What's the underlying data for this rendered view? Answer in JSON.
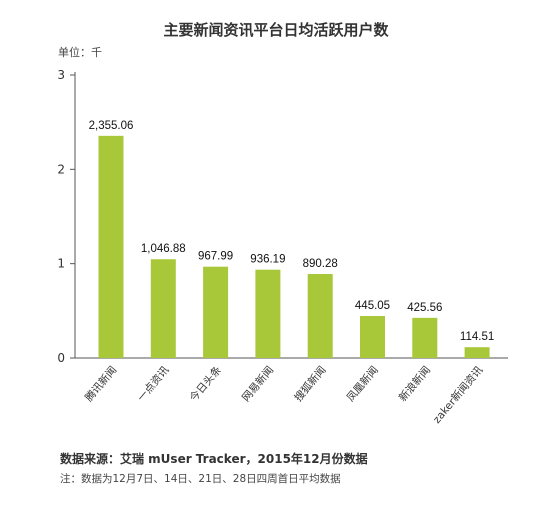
{
  "chart_data": {
    "type": "bar",
    "title": "主要新闻资讯平台日均活跃用户数",
    "unit_label": "单位：千",
    "categories": [
      "腾讯新闻",
      "一点资讯",
      "今日头条",
      "网易新闻",
      "搜狐新闻",
      "凤凰新闻",
      "新浪新闻",
      "zaker新闻资讯"
    ],
    "values": [
      2355.06,
      1046.88,
      967.99,
      936.19,
      890.28,
      445.05,
      425.56,
      114.51
    ],
    "data_labels": [
      "2,355.06",
      "1,046.88",
      "967.99",
      "936.19",
      "890.28",
      "445.05",
      "425.56",
      "114.51"
    ],
    "y_ticks": [
      "0",
      "1",
      "2",
      "3"
    ],
    "ylim": [
      0,
      3000
    ],
    "grid": false,
    "legend": "none",
    "bar_color": "#a8c83a",
    "axis_color": "#555555"
  },
  "source": "数据来源：艾瑞 mUser Tracker，2015年12月份数据",
  "note": "注：数据为12月7日、14日、21日、28日四周首日平均数据"
}
